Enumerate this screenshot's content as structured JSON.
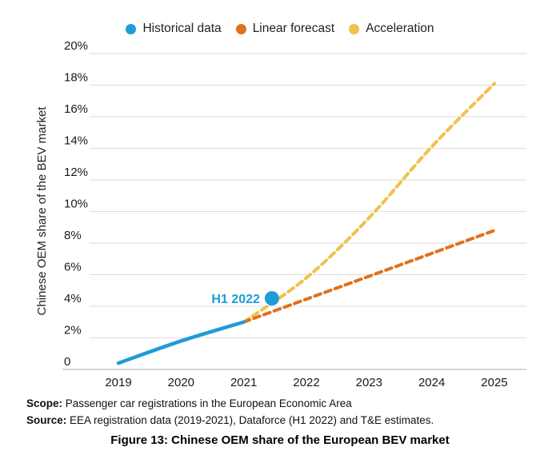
{
  "chart_data": {
    "type": "line",
    "title": "Figure 13: Chinese OEM share of the European BEV market",
    "xlabel": "",
    "ylabel": "Chinese OEM share of the BEV market",
    "x_range": [
      2019,
      2025
    ],
    "ylim": [
      0,
      20
    ],
    "grid": "horizontal",
    "legend_position": "top-center",
    "x_ticks": {
      "values": [
        2019,
        2020,
        2021,
        2022,
        2023,
        2024,
        2025
      ],
      "labels": [
        "2019",
        "2020",
        "2021",
        "2022",
        "2023",
        "2024",
        "2025"
      ]
    },
    "y_ticks": {
      "values": [
        0,
        2,
        4,
        6,
        8,
        10,
        12,
        14,
        16,
        18,
        20
      ],
      "labels": [
        "0",
        "2%",
        "4%",
        "6%",
        "8%",
        "10%",
        "12%",
        "14%",
        "16%",
        "18%",
        "20%"
      ]
    },
    "series": [
      {
        "name": "Historical data",
        "color": "#1d9cd8",
        "style": "solid",
        "x": [
          2019,
          2020,
          2021
        ],
        "values": [
          0.4,
          1.8,
          3.0
        ]
      },
      {
        "name": "Linear forecast",
        "color": "#e0711c",
        "style": "dashed",
        "x": [
          2021,
          2022,
          2023,
          2024,
          2025
        ],
        "values": [
          3.0,
          4.45,
          5.9,
          7.35,
          8.8
        ]
      },
      {
        "name": "Acceleration",
        "color": "#f0c14b",
        "style": "dashed",
        "x": [
          2021,
          2022,
          2023,
          2024,
          2025
        ],
        "values": [
          3.0,
          5.8,
          9.6,
          14.1,
          18.1
        ]
      }
    ],
    "annotation": {
      "label": "H1 2022",
      "x": 2021.45,
      "value": 4.5,
      "color": "#1d9cd8"
    },
    "colors": {
      "gridline": "#dcdcdc",
      "zero_line": "#c8c8c8",
      "tick_text": "#1a1a1a",
      "axis_title_text": "#222222"
    }
  },
  "notes": {
    "scope_label": "Scope:",
    "scope_text": " Passenger car registrations in the European Economic Area",
    "source_label": "Source:",
    "source_text": " EEA registration data (2019-2021), Dataforce (H1 2022) and T&E estimates."
  },
  "caption": "Figure 13: Chinese OEM share of the European BEV market"
}
